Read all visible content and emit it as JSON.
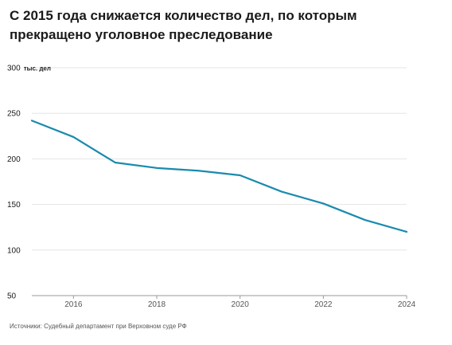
{
  "title_lines": [
    "С 2015 года снижается количество дел, по которым",
    "прекращено уголовное преследование"
  ],
  "y_unit_label": "тыс. дел",
  "source": "Источники: Судебный департамент при Верховном суде РФ",
  "colors": {
    "line": "#1a8aae",
    "grid": "#e6e6e6",
    "axis": "#999999"
  },
  "chart_data": {
    "type": "line",
    "title": "С 2015 года снижается количество дел, по которым прекращено уголовное преследование",
    "xlabel": "",
    "ylabel": "тыс. дел",
    "x": [
      2015,
      2016,
      2017,
      2018,
      2019,
      2020,
      2021,
      2022,
      2023,
      2024
    ],
    "series": [
      {
        "values": [
          242,
          224,
          196,
          190,
          187,
          182,
          164,
          151,
          133,
          120
        ]
      }
    ],
    "xlim": [
      2015,
      2024
    ],
    "ylim": [
      50,
      300
    ],
    "x_ticks": [
      2016,
      2018,
      2020,
      2022,
      2024
    ],
    "y_ticks": [
      50,
      100,
      150,
      200,
      250,
      300
    ],
    "grid": true
  }
}
